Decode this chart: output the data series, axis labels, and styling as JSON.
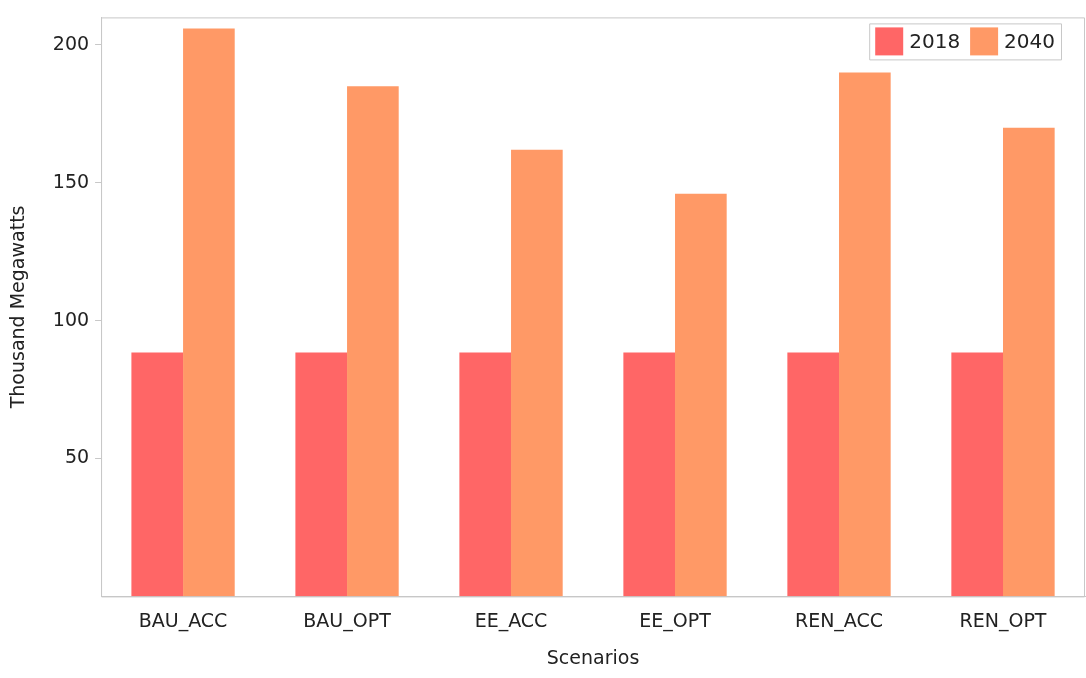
{
  "chart_data": {
    "type": "bar",
    "xlabel": "Scenarios",
    "ylabel": "Thousand Megawatts",
    "categories": [
      "BAU_ACC",
      "BAU_OPT",
      "EE_ACC",
      "EE_OPT",
      "REN_ACC",
      "REN_OPT"
    ],
    "series": [
      {
        "name": "2018",
        "color": "#ff6666",
        "values": [
          88.5,
          88.5,
          88.5,
          88.5,
          88.5,
          88.5
        ]
      },
      {
        "name": "2040",
        "color": "#ff9966",
        "values": [
          206,
          185,
          162,
          146,
          190,
          170
        ]
      }
    ],
    "ylim": [
      0,
      210
    ],
    "yticks": [
      50,
      100,
      150,
      200
    ],
    "grid": false,
    "legend": "top right"
  }
}
